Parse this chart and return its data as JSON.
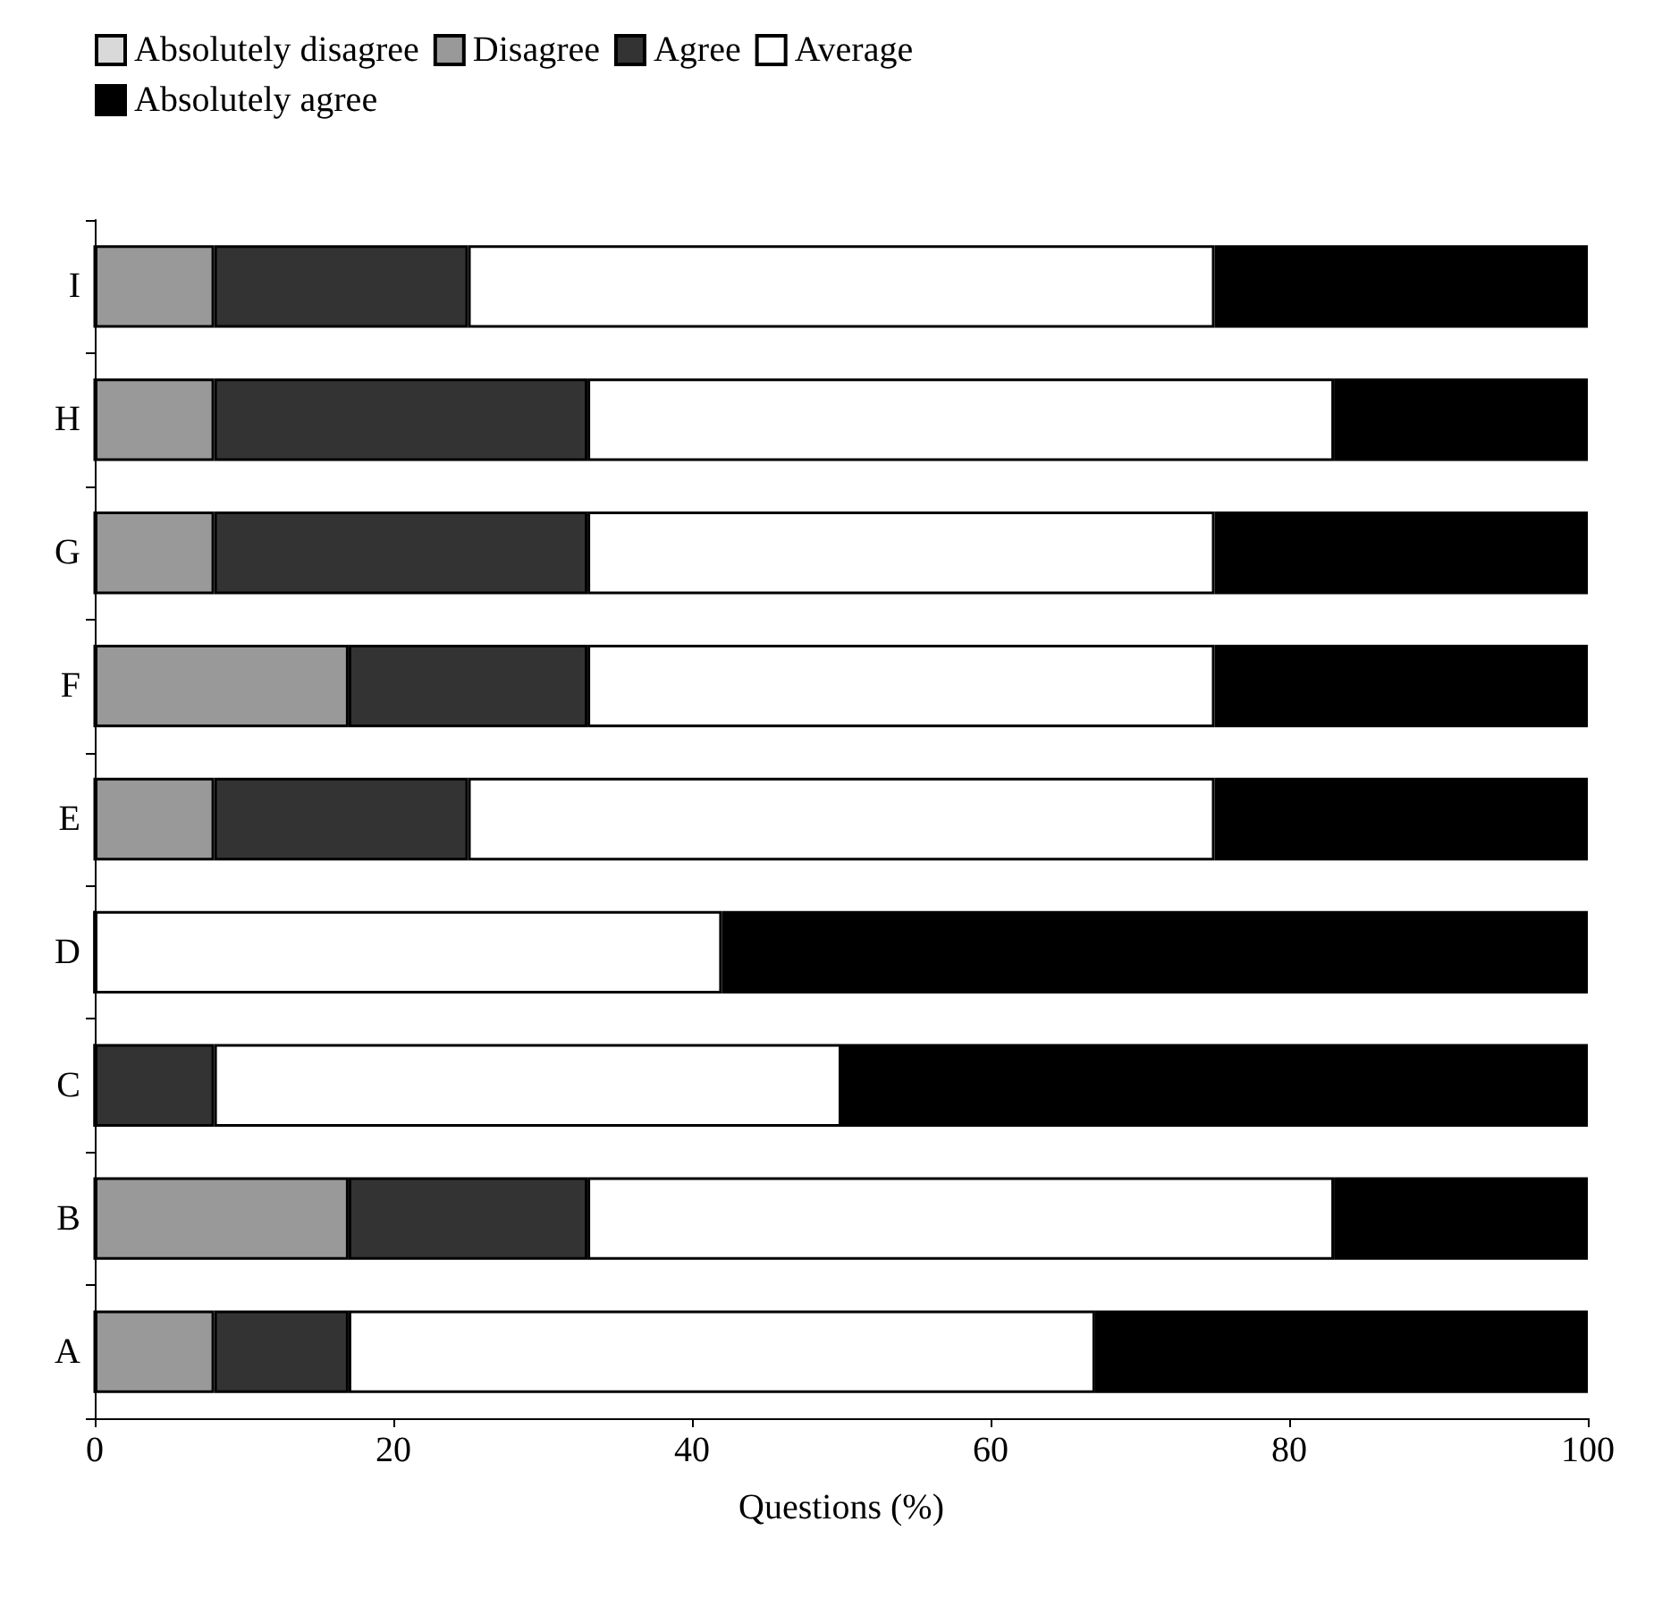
{
  "chart_data": {
    "type": "bar",
    "orientation": "horizontal",
    "stacked": true,
    "xlabel": "Questions (%)",
    "categories": [
      "I",
      "H",
      "G",
      "F",
      "E",
      "D",
      "C",
      "B",
      "A"
    ],
    "series": [
      {
        "name": "Absolutely disagree",
        "color": "#d9d9d9",
        "values": [
          0,
          0,
          0,
          0,
          0,
          0,
          0,
          0,
          0
        ]
      },
      {
        "name": "Disagree",
        "color": "#999999",
        "values": [
          8,
          8,
          8,
          17,
          8,
          0,
          0,
          17,
          8
        ]
      },
      {
        "name": "Agree",
        "color": "#333333",
        "values": [
          17,
          25,
          25,
          16,
          17,
          0,
          8,
          16,
          9
        ]
      },
      {
        "name": "Average",
        "color": "#ffffff",
        "values": [
          50,
          50,
          42,
          42,
          50,
          42,
          42,
          50,
          50
        ]
      },
      {
        "name": "Absolutely agree",
        "color": "#000000",
        "values": [
          25,
          17,
          25,
          25,
          25,
          58,
          50,
          17,
          33
        ]
      }
    ],
    "xlim": [
      0,
      100
    ],
    "xticks": [
      0,
      20,
      40,
      60,
      80,
      100
    ],
    "grid": false,
    "legend": "top left"
  }
}
